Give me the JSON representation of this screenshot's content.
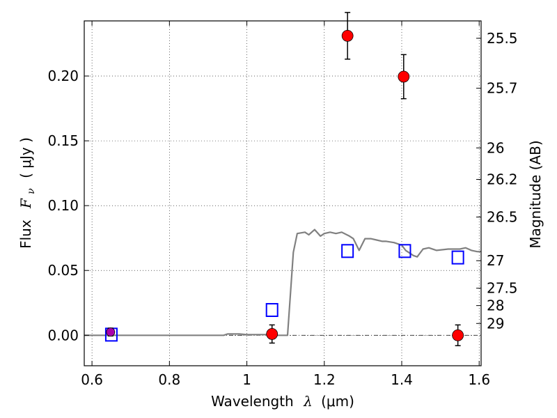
{
  "chart_data": {
    "type": "scatter",
    "xlabel": {
      "prefix": "Wavelength",
      "symbol": "λ",
      "unit": "(μm)"
    },
    "ylabel": {
      "prefix": "Flux",
      "symbol": "F",
      "sub": "ν",
      "unit": "( μJy )"
    },
    "ylabel_right": "Magnitude (AB)",
    "xlim": [
      0.58,
      1.605
    ],
    "ylim": [
      -0.0235,
      0.2425
    ],
    "grid": true,
    "x_ticks": [
      {
        "value": 0.6,
        "label": "0.6"
      },
      {
        "value": 0.8,
        "label": "0.8"
      },
      {
        "value": 1.0,
        "label": "1"
      },
      {
        "value": 1.2,
        "label": "1.2"
      },
      {
        "value": 1.4,
        "label": "1.4"
      },
      {
        "value": 1.6,
        "label": "1.6"
      }
    ],
    "y_ticks": [
      {
        "value": 0.0,
        "label": "0.00"
      },
      {
        "value": 0.05,
        "label": "0.05"
      },
      {
        "value": 0.1,
        "label": "0.10"
      },
      {
        "value": 0.15,
        "label": "0.15"
      },
      {
        "value": 0.2,
        "label": "0.20"
      }
    ],
    "mag_ticks": [
      {
        "mag": 25.5,
        "label": "25.5"
      },
      {
        "mag": 25.7,
        "label": "25.7"
      },
      {
        "mag": 26.0,
        "label": "26"
      },
      {
        "mag": 26.2,
        "label": "26.2"
      },
      {
        "mag": 26.5,
        "label": "26.5"
      },
      {
        "mag": 27.0,
        "label": "27"
      },
      {
        "mag": 27.5,
        "label": "27.5"
      },
      {
        "mag": 28.0,
        "label": "28"
      },
      {
        "mag": 29.0,
        "label": "29"
      }
    ],
    "series": [
      {
        "kind": "observed",
        "color": "#ff0000",
        "points": [
          {
            "x": 0.648,
            "y": 0.0025,
            "err": 0.003,
            "color": "#aa00aa"
          },
          {
            "x": 1.065,
            "y": 0.001,
            "err": 0.007
          },
          {
            "x": 1.26,
            "y": 0.231,
            "err": 0.018
          },
          {
            "x": 1.405,
            "y": 0.1995,
            "err": 0.017
          },
          {
            "x": 1.545,
            "y": 0.0,
            "err": 0.008
          }
        ]
      },
      {
        "kind": "model-photometry",
        "color": "#0000ff",
        "points": [
          {
            "x": 0.65,
            "y": 0.0005
          },
          {
            "x": 1.065,
            "y": 0.0195
          },
          {
            "x": 1.26,
            "y": 0.065
          },
          {
            "x": 1.408,
            "y": 0.065
          },
          {
            "x": 1.545,
            "y": 0.06
          }
        ]
      },
      {
        "kind": "model-spectrum",
        "color": "#808080",
        "x": [
          0.58,
          0.94,
          0.95,
          0.98,
          1.0,
          1.05,
          1.08,
          1.105,
          1.12,
          1.13,
          1.15,
          1.16,
          1.175,
          1.19,
          1.2,
          1.215,
          1.23,
          1.245,
          1.265,
          1.275,
          1.29,
          1.305,
          1.32,
          1.335,
          1.35,
          1.36,
          1.38,
          1.4,
          1.41,
          1.42,
          1.43,
          1.44,
          1.455,
          1.47,
          1.49,
          1.52,
          1.535,
          1.55,
          1.565,
          1.58,
          1.595,
          1.605
        ],
        "y": [
          0.0,
          0.0,
          0.001,
          0.001,
          0.0005,
          0.0005,
          0.0,
          0.0,
          0.064,
          0.0785,
          0.0795,
          0.0775,
          0.0815,
          0.0765,
          0.0785,
          0.0795,
          0.0785,
          0.0795,
          0.0765,
          0.0745,
          0.0655,
          0.0745,
          0.0745,
          0.0735,
          0.0725,
          0.0725,
          0.0715,
          0.0695,
          0.0655,
          0.0635,
          0.0615,
          0.0605,
          0.0665,
          0.0675,
          0.0655,
          0.0665,
          0.0665,
          0.0665,
          0.0675,
          0.0655,
          0.0645,
          0.0645
        ]
      }
    ]
  }
}
